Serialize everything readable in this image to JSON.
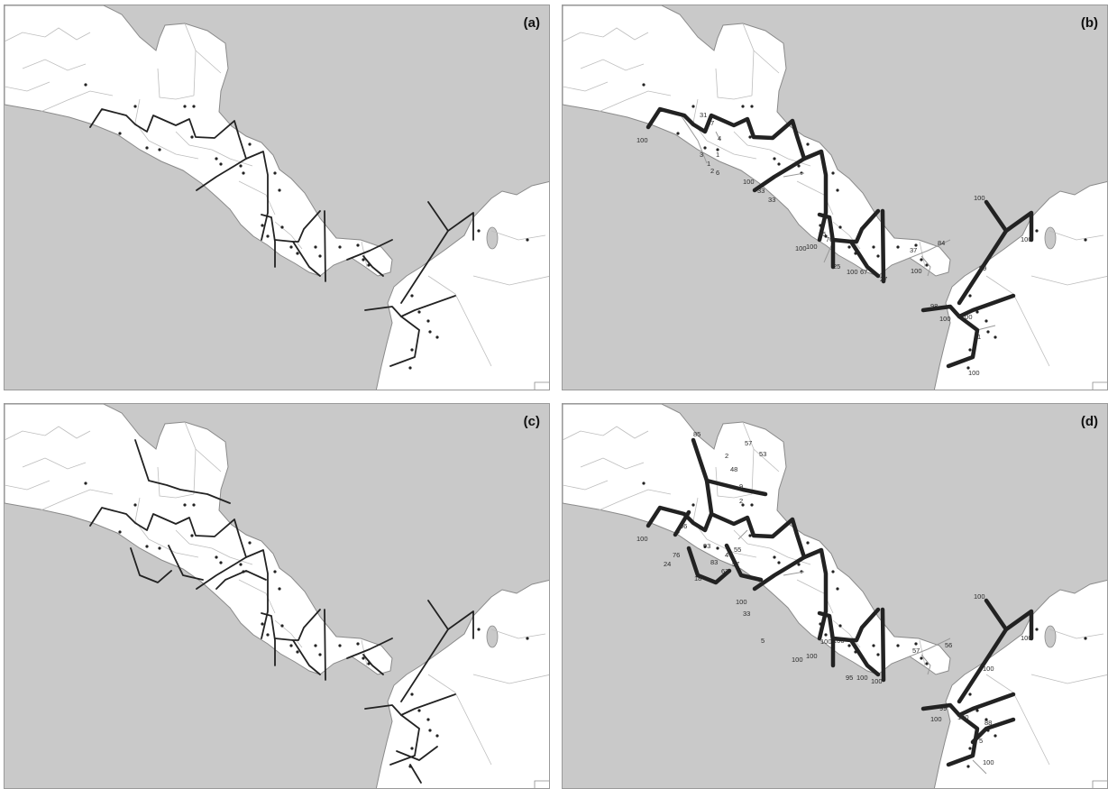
{
  "colors": {
    "ocean": "#c9c9c9",
    "land": "#ffffff",
    "coast": "#8a8a8a",
    "border": "#bdbdbd",
    "barrier": "#222222",
    "barrier_faint": "#999999",
    "site": "#222222"
  },
  "panels": [
    {
      "id": "a",
      "letter": "(a)",
      "style": "thin",
      "labels": []
    },
    {
      "id": "b",
      "letter": "(b)",
      "style": "weighted",
      "labels": [
        "100",
        "31",
        "37",
        "4",
        "1",
        "3",
        "1",
        "2",
        "6",
        "33",
        "100",
        "33",
        "100",
        "100",
        "95",
        "70",
        "25",
        "100",
        "67",
        "27",
        "37",
        "84",
        "100",
        "100",
        "100",
        "99",
        "98",
        "100",
        "100",
        "1",
        "100"
      ]
    },
    {
      "id": "c",
      "letter": "(c)",
      "style": "thin",
      "labels": []
    },
    {
      "id": "d",
      "letter": "(d)",
      "style": "weighted",
      "labels": [
        "85",
        "2",
        "57",
        "53",
        "48",
        "9",
        "2",
        "100",
        "96",
        "76",
        "24",
        "18",
        "93",
        "47",
        "55",
        "57",
        "63",
        "83",
        "100",
        "33",
        "5",
        "100",
        "100",
        "100",
        "100",
        "95",
        "100",
        "100",
        "57",
        "56",
        "100",
        "100",
        "100",
        "99",
        "100",
        "100",
        "88",
        "5",
        "100"
      ]
    }
  ]
}
